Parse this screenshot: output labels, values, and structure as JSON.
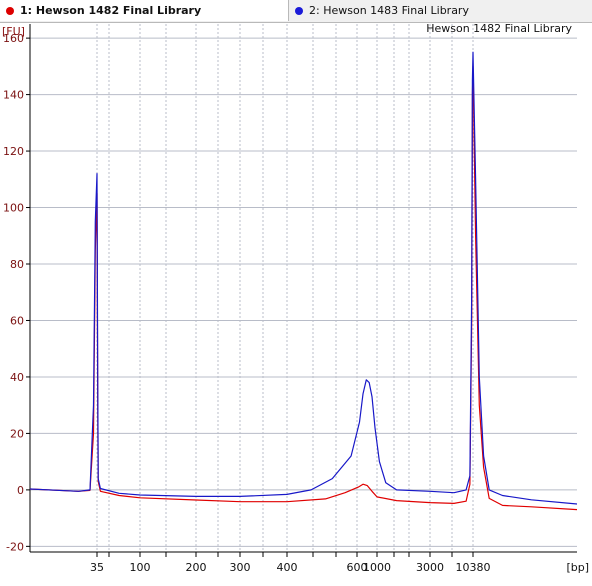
{
  "tabs": [
    {
      "label": "1: Hewson 1482 Final Library",
      "color": "#dd0000",
      "active": true
    },
    {
      "label": "2: Hewson 1483 Final Library",
      "color": "#1a1ad8",
      "active": false
    }
  ],
  "chart_data": {
    "type": "line",
    "title": "Hewson 1482 Final Library",
    "ylabel": "[FU]",
    "xlabel": "[bp]",
    "ylim": [
      -22,
      165
    ],
    "y_ticks": [
      -20,
      0,
      20,
      40,
      60,
      80,
      100,
      120,
      140,
      160
    ],
    "x_tick_labels": [
      "35",
      "100",
      "200",
      "300",
      "400",
      "600",
      "1000",
      "3000",
      "10380"
    ],
    "grid": true,
    "series": [
      {
        "name": "1: Hewson 1482 Final Library",
        "color": "#e00000",
        "points": [
          {
            "bp": 20,
            "fu": 0.3
          },
          {
            "bp": 30,
            "fu": -0.5
          },
          {
            "bp": 33,
            "fu": -0.2
          },
          {
            "bp": 34,
            "fu": 20
          },
          {
            "bp": 34.5,
            "fu": 85
          },
          {
            "bp": 35,
            "fu": 105
          },
          {
            "bp": 35.5,
            "fu": 40
          },
          {
            "bp": 36,
            "fu": 3
          },
          {
            "bp": 38,
            "fu": -0.5
          },
          {
            "bp": 60,
            "fu": -2
          },
          {
            "bp": 100,
            "fu": -2.8
          },
          {
            "bp": 200,
            "fu": -3.6
          },
          {
            "bp": 300,
            "fu": -4.2
          },
          {
            "bp": 400,
            "fu": -4.2
          },
          {
            "bp": 500,
            "fu": -3.2
          },
          {
            "bp": 560,
            "fu": -1
          },
          {
            "bp": 620,
            "fu": 1
          },
          {
            "bp": 700,
            "fu": 2
          },
          {
            "bp": 780,
            "fu": 1.5
          },
          {
            "bp": 880,
            "fu": -0.5
          },
          {
            "bp": 1000,
            "fu": -2.5
          },
          {
            "bp": 1500,
            "fu": -3.8
          },
          {
            "bp": 3000,
            "fu": -4.5
          },
          {
            "bp": 6000,
            "fu": -4.8
          },
          {
            "bp": 8500,
            "fu": -4
          },
          {
            "bp": 9500,
            "fu": 2
          },
          {
            "bp": 10000,
            "fu": 60
          },
          {
            "bp": 10200,
            "fu": 140
          },
          {
            "bp": 10380,
            "fu": 150
          },
          {
            "bp": 10550,
            "fu": 90
          },
          {
            "bp": 10800,
            "fu": 30
          },
          {
            "bp": 11100,
            "fu": 8
          },
          {
            "bp": 11500,
            "fu": -3
          },
          {
            "bp": 12500,
            "fu": -5.5
          },
          {
            "bp": 15000,
            "fu": -6
          },
          {
            "bp": 20000,
            "fu": -7
          }
        ]
      },
      {
        "name": "2: Hewson 1483 Final Library",
        "color": "#1818c8",
        "points": [
          {
            "bp": 20,
            "fu": 0.3
          },
          {
            "bp": 30,
            "fu": -0.5
          },
          {
            "bp": 33,
            "fu": 0
          },
          {
            "bp": 34,
            "fu": 30
          },
          {
            "bp": 34.5,
            "fu": 95
          },
          {
            "bp": 35,
            "fu": 112
          },
          {
            "bp": 35.5,
            "fu": 50
          },
          {
            "bp": 36,
            "fu": 4
          },
          {
            "bp": 38,
            "fu": 0.5
          },
          {
            "bp": 60,
            "fu": -1.2
          },
          {
            "bp": 100,
            "fu": -1.8
          },
          {
            "bp": 200,
            "fu": -2.3
          },
          {
            "bp": 300,
            "fu": -2.3
          },
          {
            "bp": 400,
            "fu": -1.6
          },
          {
            "bp": 460,
            "fu": 0
          },
          {
            "bp": 520,
            "fu": 4
          },
          {
            "bp": 580,
            "fu": 12
          },
          {
            "bp": 640,
            "fu": 24
          },
          {
            "bp": 700,
            "fu": 34
          },
          {
            "bp": 760,
            "fu": 39
          },
          {
            "bp": 820,
            "fu": 38
          },
          {
            "bp": 880,
            "fu": 33
          },
          {
            "bp": 950,
            "fu": 22
          },
          {
            "bp": 1050,
            "fu": 10
          },
          {
            "bp": 1200,
            "fu": 2.5
          },
          {
            "bp": 1500,
            "fu": 0
          },
          {
            "bp": 3000,
            "fu": -0.5
          },
          {
            "bp": 6000,
            "fu": -1
          },
          {
            "bp": 8500,
            "fu": 0
          },
          {
            "bp": 9500,
            "fu": 5
          },
          {
            "bp": 10000,
            "fu": 70
          },
          {
            "bp": 10200,
            "fu": 145
          },
          {
            "bp": 10380,
            "fu": 155
          },
          {
            "bp": 10550,
            "fu": 110
          },
          {
            "bp": 10800,
            "fu": 40
          },
          {
            "bp": 11100,
            "fu": 12
          },
          {
            "bp": 11500,
            "fu": 0
          },
          {
            "bp": 12500,
            "fu": -2
          },
          {
            "bp": 15000,
            "fu": -3.5
          },
          {
            "bp": 20000,
            "fu": -5
          }
        ]
      }
    ]
  }
}
